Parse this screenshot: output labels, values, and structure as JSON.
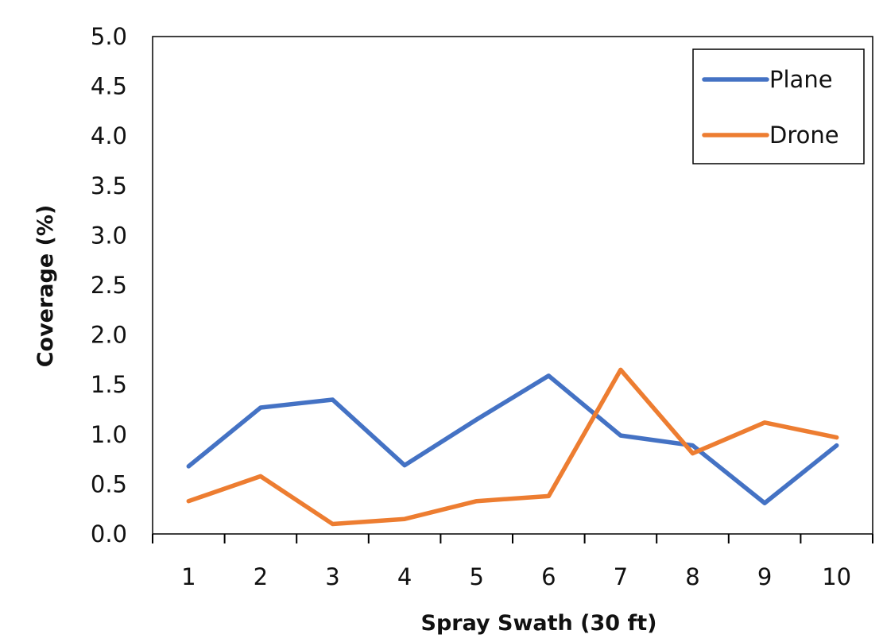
{
  "chart_data": {
    "type": "line",
    "title": "",
    "xlabel": "Spray Swath (30 ft)",
    "ylabel": "Coverage (%)",
    "categories": [
      "1",
      "2",
      "3",
      "4",
      "5",
      "6",
      "7",
      "8",
      "9",
      "10"
    ],
    "yticks": [
      "0.0",
      "0.5",
      "1.0",
      "1.5",
      "2.0",
      "2.5",
      "3.0",
      "3.5",
      "4.0",
      "4.5",
      "5.0"
    ],
    "ylim": [
      0,
      5
    ],
    "grid": false,
    "legend_position": "top-right",
    "series": [
      {
        "name": "Plane",
        "color": "#4472C4",
        "values": [
          0.68,
          1.27,
          1.35,
          0.69,
          1.15,
          1.59,
          0.99,
          0.89,
          0.31,
          0.89
        ]
      },
      {
        "name": "Drone",
        "color": "#ED7D31",
        "values": [
          0.33,
          0.58,
          0.1,
          0.15,
          0.33,
          0.38,
          1.65,
          0.81,
          1.12,
          0.97
        ]
      }
    ]
  }
}
